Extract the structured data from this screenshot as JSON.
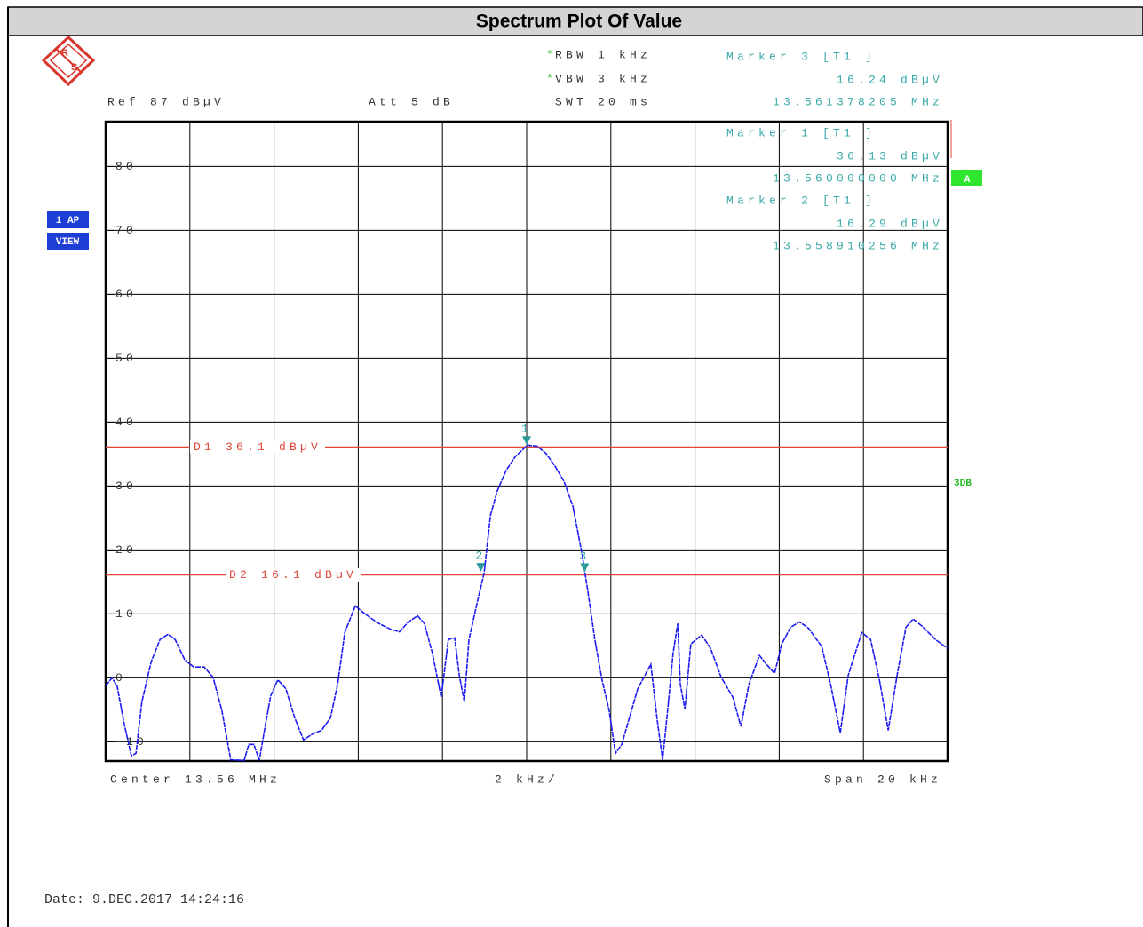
{
  "header": {
    "title": "Spectrum Plot Of Value",
    "date": "Date: 9.DEC.2017  14:24:16"
  },
  "instrument": {
    "rbw": {
      "flag": "*",
      "text": "RBW  1 kHz"
    },
    "vbw": {
      "flag": "*",
      "text": "VBW  3 kHz"
    },
    "swt": "SWT  20 ms",
    "ref": "Ref  87 dBµV",
    "att": "Att  5 dB",
    "trace_mode": "1 AP",
    "view": "VIEW",
    "trace_label": "A",
    "mode": "3DB",
    "center": "Center  13.56 MHz",
    "div": "2 kHz/",
    "span": "Span  20 kHz"
  },
  "chart_data": {
    "type": "line",
    "color": "#1c1cf0",
    "xlim": [
      13.55,
      13.57
    ],
    "ylim": [
      -13,
      87
    ],
    "xticks": [
      13.55,
      13.552,
      13.554,
      13.556,
      13.558,
      13.56,
      13.562,
      13.564,
      13.566,
      13.568,
      13.57
    ],
    "yticks": [
      -10,
      0,
      10,
      20,
      30,
      40,
      50,
      60,
      70,
      80
    ],
    "grid": true,
    "x": [
      13.55,
      13.55015,
      13.55027,
      13.55044,
      13.55061,
      13.55072,
      13.55086,
      13.55108,
      13.55129,
      13.55148,
      13.55165,
      13.55188,
      13.55209,
      13.55234,
      13.55255,
      13.55276,
      13.55297,
      13.55329,
      13.5534,
      13.55352,
      13.55365,
      13.55378,
      13.55392,
      13.55409,
      13.55428,
      13.55449,
      13.5547,
      13.55492,
      13.55513,
      13.55534,
      13.55551,
      13.55568,
      13.55593,
      13.55614,
      13.55646,
      13.55677,
      13.55698,
      13.55719,
      13.55741,
      13.55757,
      13.55776,
      13.55797,
      13.55814,
      13.55829,
      13.5584,
      13.55852,
      13.55863,
      13.55884,
      13.55899,
      13.55914,
      13.5593,
      13.55951,
      13.55973,
      13.56002,
      13.56025,
      13.56046,
      13.56068,
      13.56089,
      13.5611,
      13.56131,
      13.56146,
      13.56162,
      13.56179,
      13.56196,
      13.56211,
      13.56226,
      13.56243,
      13.56264,
      13.56281,
      13.56295,
      13.5631,
      13.56323,
      13.56336,
      13.56348,
      13.56359,
      13.56365,
      13.56376,
      13.5639,
      13.56416,
      13.56437,
      13.56462,
      13.5649,
      13.56509,
      13.56528,
      13.56553,
      13.5657,
      13.56589,
      13.56606,
      13.56627,
      13.56648,
      13.56669,
      13.56701,
      13.56722,
      13.56745,
      13.56764,
      13.56796,
      13.56817,
      13.56838,
      13.56859,
      13.5688,
      13.56901,
      13.56918,
      13.56939,
      13.56971,
      13.57
    ],
    "values": [
      -1.25,
      0,
      -1.25,
      -7.2,
      -12.2,
      -11.8,
      -3.75,
      2.5,
      6,
      6.8,
      6,
      2.8,
      1.7,
      1.7,
      0.1,
      -5.1,
      -12.8,
      -12.9,
      -10.4,
      -10.4,
      -12.9,
      -7.9,
      -2.8,
      -0.3,
      -1.7,
      -6.25,
      -9.7,
      -8.75,
      -8.2,
      -6.25,
      -1,
      7.1,
      11.25,
      10.1,
      8.6,
      7.6,
      7.2,
      8.75,
      9.7,
      8.5,
      3.9,
      -3.05,
      6,
      6.25,
      0.4,
      -3.75,
      6,
      12.2,
      16.4,
      25.4,
      29.2,
      32.4,
      34.6,
      36.4,
      36.25,
      35.1,
      33.05,
      30.7,
      26.8,
      19.6,
      13.3,
      6,
      -0.3,
      -5.1,
      -11.8,
      -10.4,
      -6.5,
      -1.7,
      0.4,
      2.1,
      -6.5,
      -12.8,
      -4.4,
      3.9,
      8.5,
      -1,
      -4.9,
      5.3,
      6.7,
      4.6,
      0.1,
      -3.05,
      -7.6,
      -1,
      3.5,
      2.1,
      0.7,
      5.3,
      7.9,
      8.75,
      7.8,
      4.9,
      -1,
      -8.6,
      0.4,
      7.1,
      6,
      -0.3,
      -8.2,
      0.4,
      7.9,
      9.2,
      8.1,
      6,
      4.6
    ],
    "display_lines": [
      {
        "label": "D1  36.1  dBµV",
        "value": 36.1,
        "color": "#e0473a"
      },
      {
        "label": "D2  16.1  dBµV",
        "value": 16.1,
        "color": "#e0473a"
      }
    ],
    "markers": [
      {
        "id": "1",
        "name": "Marker  1  [T1 ]",
        "x": 13.56,
        "y": 36.13,
        "x_label": "13.560000000  MHz",
        "y_label": "36.13  dBµV"
      },
      {
        "id": "2",
        "name": "Marker  2  [T1 ]",
        "x": 13.558910256,
        "y": 16.29,
        "x_label": "13.558910256  MHz",
        "y_label": "16.29  dBµV"
      },
      {
        "id": "3",
        "name": "Marker  3  [T1 ]",
        "x": 13.561378205,
        "y": 16.24,
        "x_label": "13.561378205  MHz",
        "y_label": "16.24  dBµV"
      }
    ],
    "marker_color": "#2a9a9a"
  }
}
